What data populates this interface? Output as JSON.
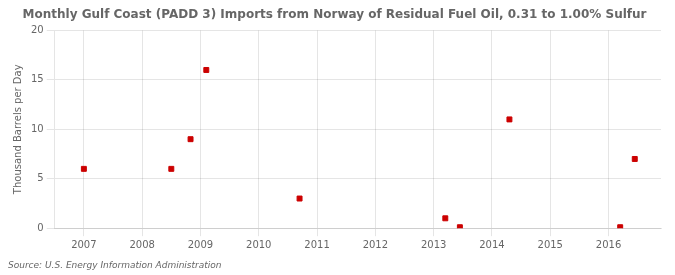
{
  "chart_data": {
    "type": "scatter",
    "title": "Monthly Gulf Coast (PADD 3) Imports from Norway of Residual Fuel Oil, 0.31 to 1.00% Sulfur",
    "ylabel": "Thousand Barrels per Day",
    "source": "Source: U.S. Energy Information Administration",
    "x": [
      2007.0,
      2008.5,
      2008.83,
      2009.1,
      2010.7,
      2013.2,
      2013.45,
      2014.3,
      2016.2,
      2016.45
    ],
    "values": [
      6,
      6,
      9,
      16,
      3,
      1,
      0.1,
      11,
      0.1,
      7
    ],
    "color": "#cc0000",
    "marker": "square",
    "xlim": [
      2006.5,
      2016.9
    ],
    "ylim": [
      0,
      20
    ],
    "xticks": [
      2007,
      2008,
      2009,
      2010,
      2011,
      2012,
      2013,
      2014,
      2015,
      2016
    ],
    "yticks": [
      0,
      5,
      10,
      15,
      20
    ],
    "grid": true
  }
}
